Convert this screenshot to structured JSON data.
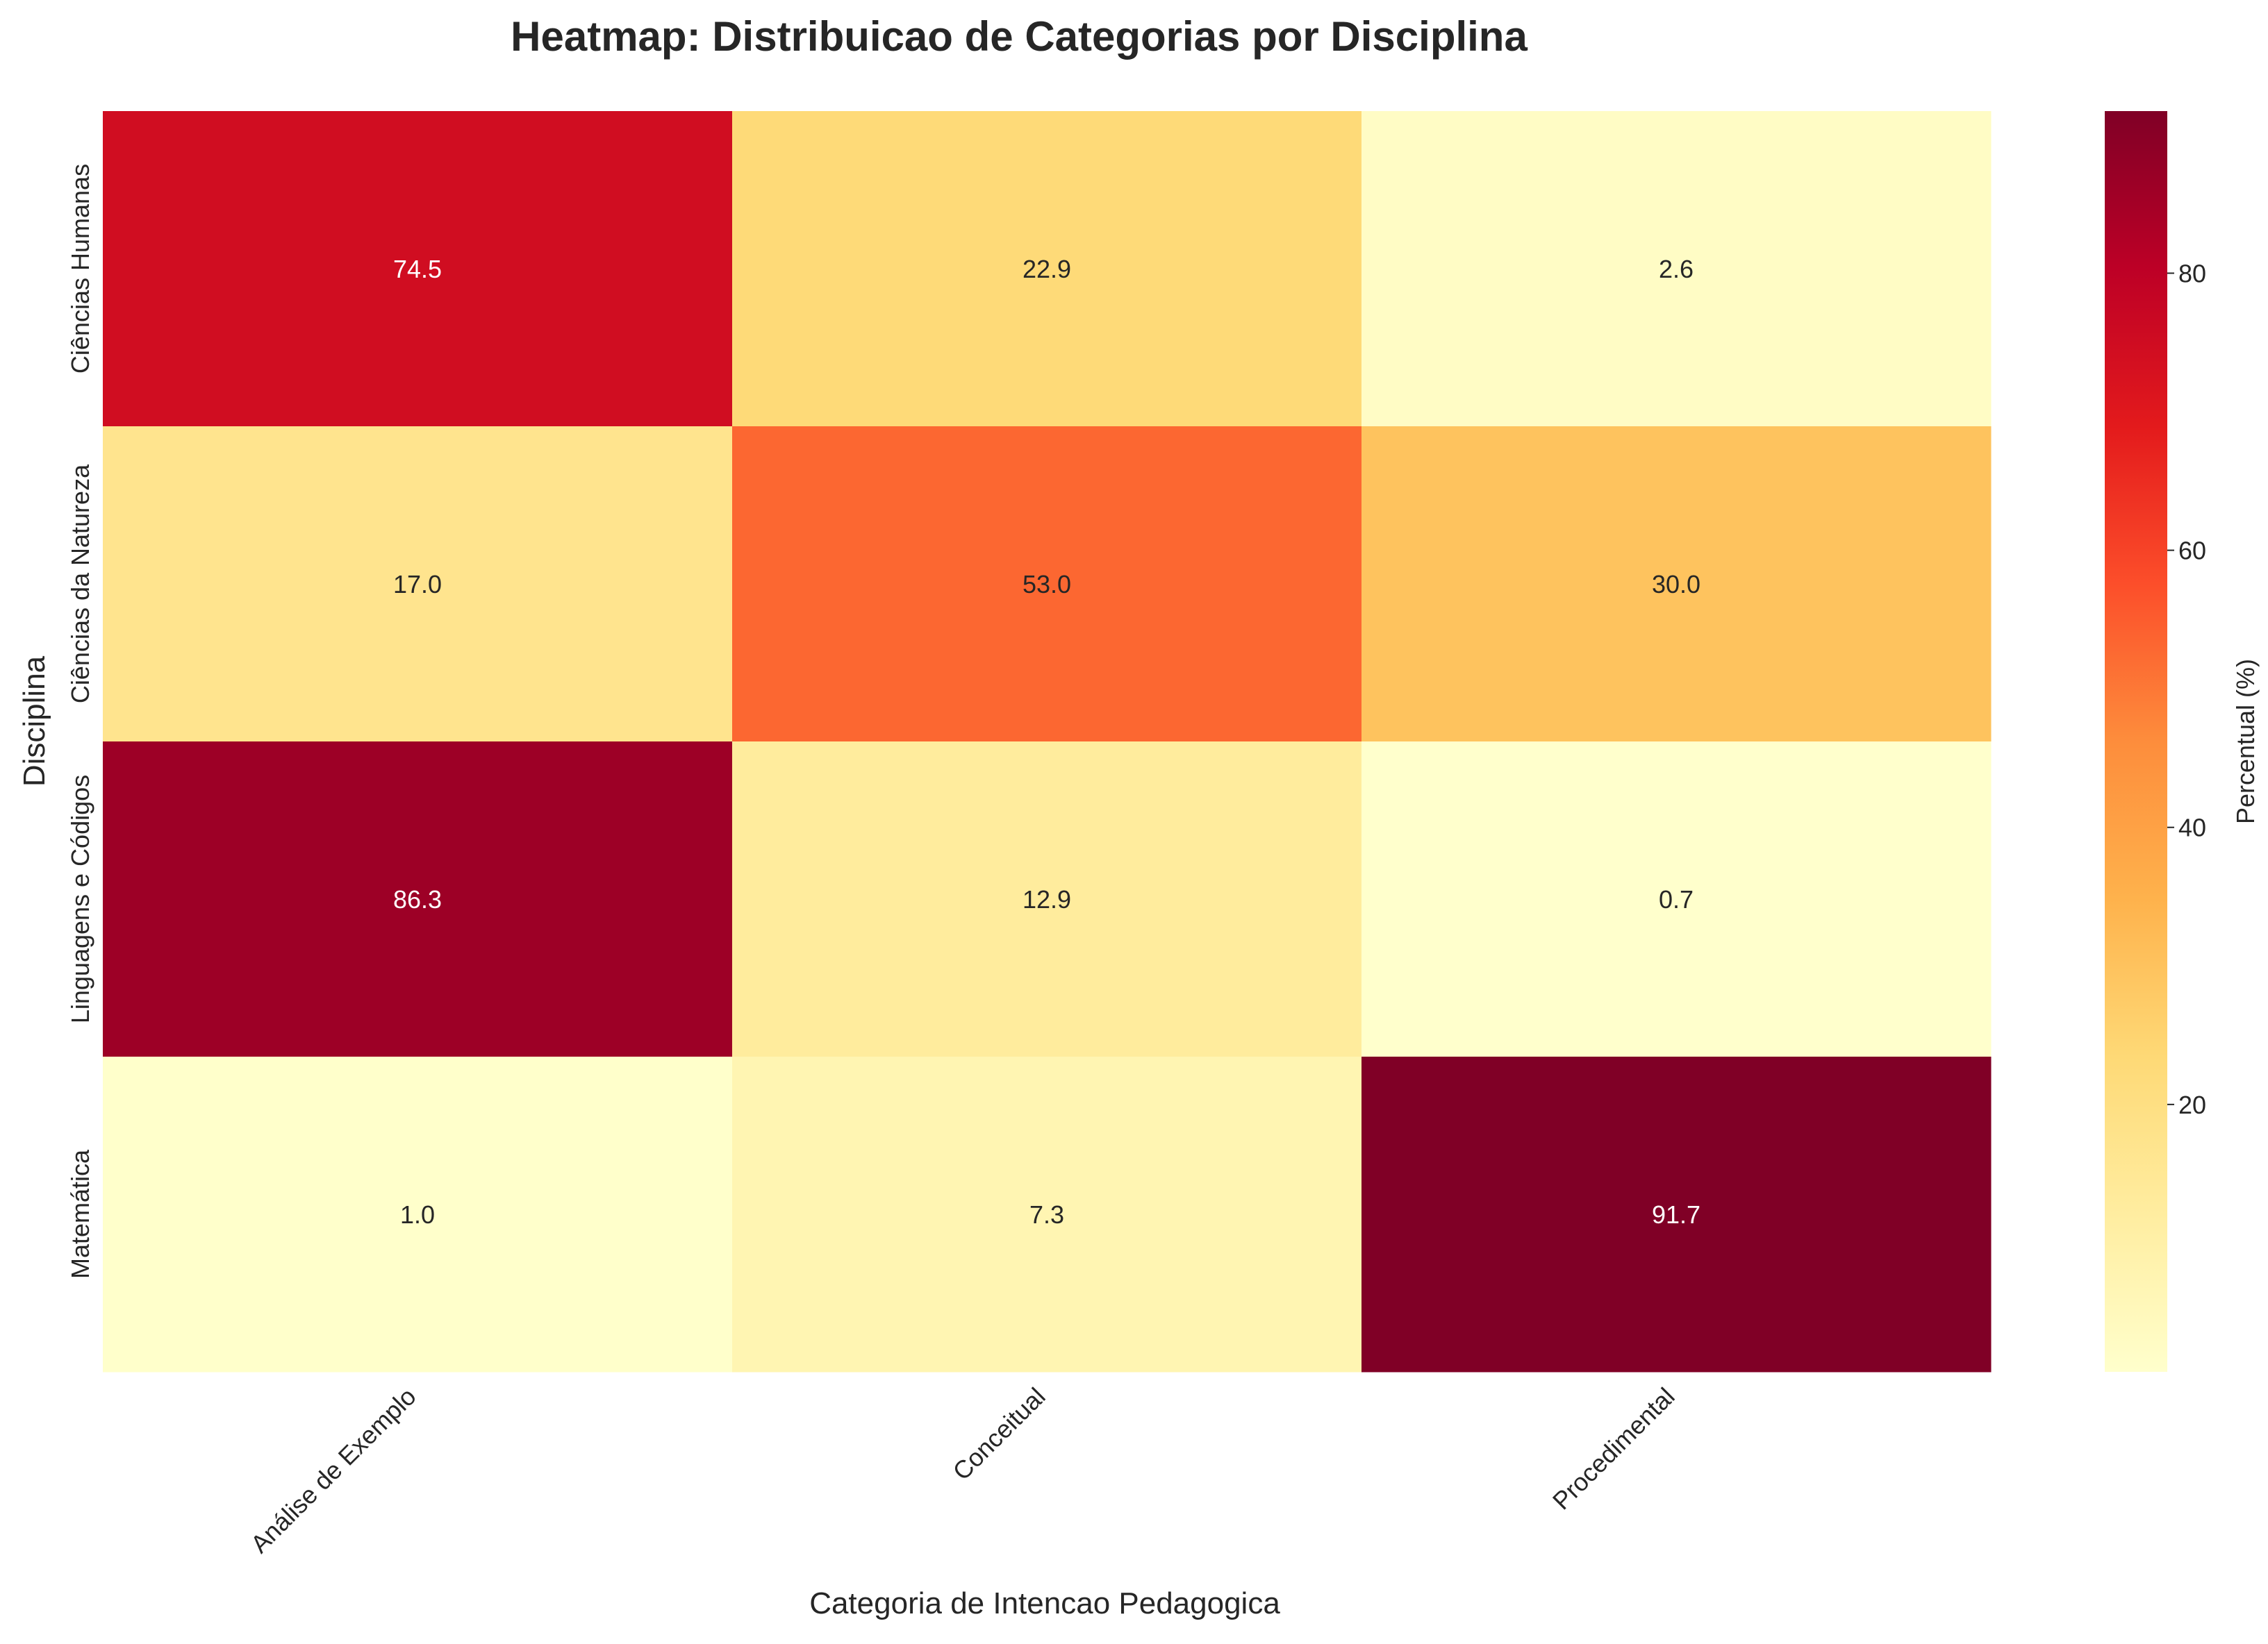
{
  "chart_data": {
    "type": "heatmap",
    "title": "Heatmap: Distribuicao de Categorias por Disciplina",
    "xlabel": "Categoria de Intencao Pedagogica",
    "ylabel": "Disciplina",
    "x_categories": [
      "Análise de Exemplo",
      "Conceitual",
      "Procedimental"
    ],
    "y_categories": [
      "Ciências Humanas",
      "Ciências da Natureza",
      "Linguagens e Códigos",
      "Matemática"
    ],
    "values": [
      [
        74.5,
        22.9,
        2.6
      ],
      [
        17.0,
        53.0,
        30.0
      ],
      [
        86.3,
        12.9,
        0.7
      ],
      [
        1.0,
        7.3,
        91.7
      ]
    ],
    "colorbar": {
      "label": "Percentual (%)",
      "range": [
        0.7,
        91.7
      ],
      "ticks": [
        20,
        40,
        60,
        80
      ],
      "colormap": "YlOrRd"
    },
    "grid": false
  }
}
